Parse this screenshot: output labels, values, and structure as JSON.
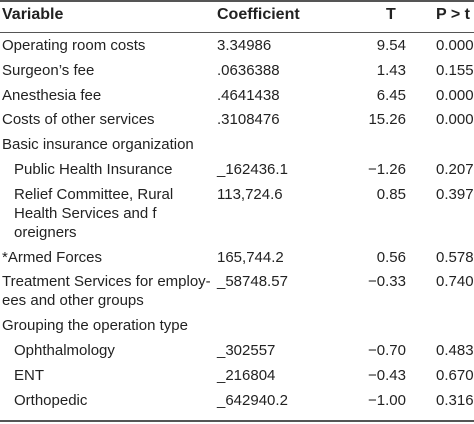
{
  "headers": {
    "variable": "Variable",
    "coefficient": "Coefficient",
    "t": "T",
    "p": "P > t"
  },
  "rows": [
    {
      "label": "Operating room costs",
      "coef": "3.34986",
      "t": "9.54",
      "p": "0.000",
      "indent": false,
      "lines": 1
    },
    {
      "label": "Surgeon’s fee",
      "coef": ".0636388",
      "t": "1.43",
      "p": "0.155",
      "indent": false,
      "lines": 1
    },
    {
      "label": "Anesthesia fee",
      "coef": ".4641438",
      "t": "6.45",
      "p": "0.000",
      "indent": false,
      "lines": 1
    },
    {
      "label": "Costs of other services",
      "coef": ".3108476",
      "t": "15.26",
      "p": "0.000",
      "indent": false,
      "lines": 1
    },
    {
      "label": "Basic insurance organization",
      "coef": "",
      "t": "",
      "p": "",
      "indent": false,
      "lines": 1
    },
    {
      "label": "Public Health Insurance",
      "coef": "_162436.1",
      "t": "−1.26",
      "p": "0.207",
      "indent": true,
      "lines": 1
    },
    {
      "label": "Relief Committee, Rural Health Services and f oreigners",
      "coef": "113,724.6",
      "t": "0.85",
      "p": "0.397",
      "indent": true,
      "lines": 3
    },
    {
      "label": "*Armed Forces",
      "coef": "165,744.2",
      "t": "0.56",
      "p": "0.578",
      "indent": false,
      "lines": 1
    },
    {
      "label": "Treatment Services for employ-ees and other groups",
      "coef": "_58748.57",
      "t": "−0.33",
      "p": "0.740",
      "indent": false,
      "lines": 2
    },
    {
      "label": "Grouping the operation type",
      "coef": "",
      "t": "",
      "p": "",
      "indent": false,
      "lines": 1
    },
    {
      "label": "Ophthalmology",
      "coef": "_302557",
      "t": "−0.70",
      "p": "0.483",
      "indent": true,
      "lines": 1
    },
    {
      "label": "ENT",
      "coef": "_216804",
      "t": "−0.43",
      "p": "0.670",
      "indent": true,
      "lines": 1
    },
    {
      "label": "Orthopedic",
      "coef": "_642940.2",
      "t": "−1.00",
      "p": "0.316",
      "indent": true,
      "lines": 1
    }
  ]
}
